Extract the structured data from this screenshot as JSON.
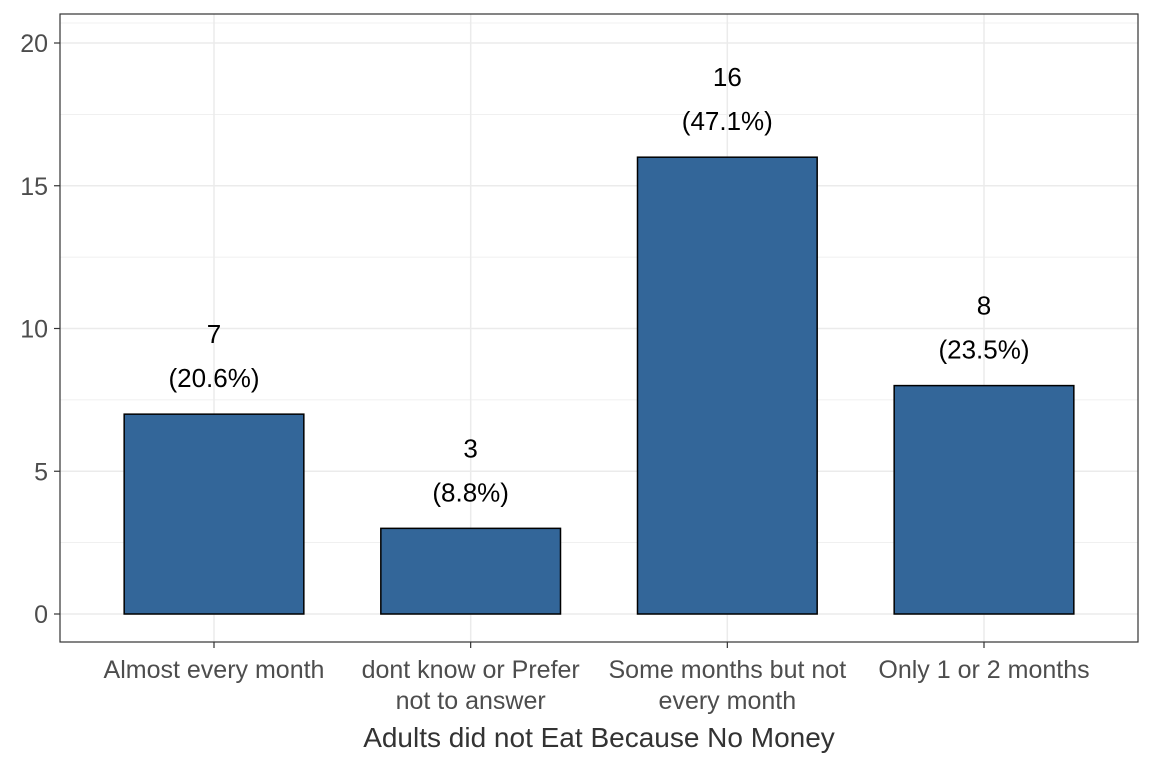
{
  "chart_data": {
    "type": "bar",
    "title": "",
    "xlabel": "Adults did not Eat Because No Money",
    "ylabel": "",
    "categories": [
      [
        "Almost every month"
      ],
      [
        "dont know or Prefer",
        "not to answer"
      ],
      [
        "Some months but not",
        "every month"
      ],
      [
        "Only 1 or 2 months"
      ]
    ],
    "values": [
      7,
      3,
      16,
      8
    ],
    "value_labels": [
      "7",
      "3",
      "16",
      "8"
    ],
    "percent_labels": [
      "(20.6%)",
      "(8.8%)",
      "(47.1%)",
      "(23.5%)"
    ],
    "ylim": [
      0,
      20
    ],
    "yticks": [
      0,
      5,
      10,
      15,
      20
    ],
    "ytick_labels": [
      "0",
      "5",
      "10",
      "15",
      "20"
    ],
    "grid": true,
    "legend": "none",
    "colors": {
      "bar": "#336699",
      "bar_outline": "#000000",
      "grid": "#ebebeb",
      "panel_border": "#333333"
    }
  }
}
